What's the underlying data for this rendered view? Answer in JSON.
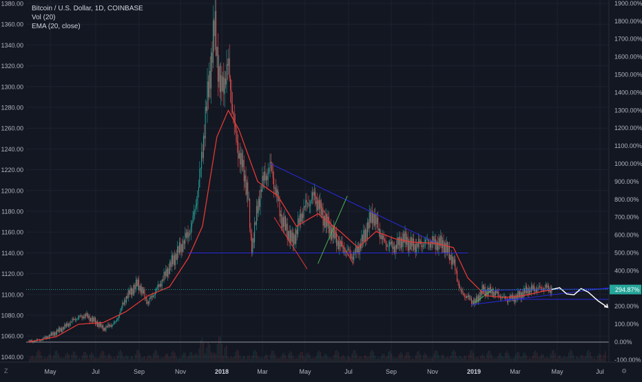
{
  "legend": {
    "symbol": "Bitcoin / U.S. Dollar, 1D, COINBASE",
    "vol": "Vol (20)",
    "ema": "EMA (20, close)"
  },
  "corner_left": "Z",
  "corner_right": "⚙",
  "colors": {
    "background": "#131722",
    "grid": "#1e2230",
    "candle_up": "#26a69a",
    "candle_down": "#ef5350",
    "ema": "#e53935",
    "trendline": "#2a2adf",
    "green_line": "#4caf50",
    "projection": "#ffffff",
    "price_line": "#26a69a",
    "badge": "#26a69a",
    "text": "#b2b5be"
  },
  "chart_data": {
    "type": "line",
    "subtype": "candlestick",
    "title": "Bitcoin / U.S. Dollar, 1D, COINBASE",
    "indicators": [
      "Vol (20)",
      "EMA (20, close)"
    ],
    "scale": "log (percent)",
    "grid": true,
    "x_ticks": [
      "May",
      "Jul",
      "Sep",
      "Nov",
      "2018",
      "Mar",
      "May",
      "Jul",
      "Sep",
      "Nov",
      "2019",
      "Mar",
      "May",
      "Jul"
    ],
    "y_left_ticks": [
      "1380.00",
      "1360.00",
      "1340.00",
      "1320.00",
      "1300.00",
      "1280.00",
      "1260.00",
      "1240.00",
      "1220.00",
      "1200.00",
      "1180.00",
      "1160.00",
      "1140.00",
      "1120.00",
      "1100.00",
      "1080.00",
      "1060.00",
      "1040.00"
    ],
    "y_right_ticks": [
      "1900.00%",
      "1800.00%",
      "1700.00%",
      "1600.00%",
      "1500.00%",
      "1400.00%",
      "1300.00%",
      "1200.00%",
      "1100.00%",
      "1000.00%",
      "900.00%",
      "800.00%",
      "700.00%",
      "600.00%",
      "500.00%",
      "400.00%",
      "300.00%",
      "200.00%",
      "100.00%",
      "0.00%",
      "-100.00%"
    ],
    "current_value_badge": "294.87%",
    "x_range": [
      "2017-04",
      "2019-07"
    ],
    "y_range_percent": [
      -100,
      1900
    ],
    "series": [
      {
        "name": "Price",
        "points": [
          [
            "2017-04-01",
            0
          ],
          [
            "2017-04-20",
            15
          ],
          [
            "2017-05-05",
            45
          ],
          [
            "2017-05-20",
            80
          ],
          [
            "2017-06-05",
            130
          ],
          [
            "2017-06-20",
            150
          ],
          [
            "2017-07-05",
            110
          ],
          [
            "2017-07-15",
            75
          ],
          [
            "2017-08-01",
            110
          ],
          [
            "2017-08-15",
            250
          ],
          [
            "2017-09-01",
            330
          ],
          [
            "2017-09-15",
            220
          ],
          [
            "2017-10-01",
            320
          ],
          [
            "2017-10-20",
            460
          ],
          [
            "2017-11-05",
            570
          ],
          [
            "2017-11-15",
            650
          ],
          [
            "2017-11-25",
            880
          ],
          [
            "2017-12-05",
            1300
          ],
          [
            "2017-12-17",
            1780
          ],
          [
            "2017-12-25",
            1400
          ],
          [
            "2018-01-05",
            1550
          ],
          [
            "2018-01-15",
            1150
          ],
          [
            "2018-02-01",
            850
          ],
          [
            "2018-02-06",
            520
          ],
          [
            "2018-02-20",
            880
          ],
          [
            "2018-03-05",
            990
          ],
          [
            "2018-03-20",
            690
          ],
          [
            "2018-04-05",
            560
          ],
          [
            "2018-04-20",
            750
          ],
          [
            "2018-05-05",
            820
          ],
          [
            "2018-05-20",
            680
          ],
          [
            "2018-06-10",
            540
          ],
          [
            "2018-06-28",
            480
          ],
          [
            "2018-07-10",
            560
          ],
          [
            "2018-07-25",
            720
          ],
          [
            "2018-08-10",
            560
          ],
          [
            "2018-08-25",
            530
          ],
          [
            "2018-09-05",
            580
          ],
          [
            "2018-09-20",
            540
          ],
          [
            "2018-10-10",
            560
          ],
          [
            "2018-11-01",
            550
          ],
          [
            "2018-11-15",
            450
          ],
          [
            "2018-11-25",
            280
          ],
          [
            "2018-12-15",
            220
          ],
          [
            "2018-12-25",
            290
          ],
          [
            "2019-01-10",
            280
          ],
          [
            "2019-01-28",
            240
          ],
          [
            "2019-02-10",
            250
          ],
          [
            "2019-02-25",
            290
          ],
          [
            "2019-03-10",
            300
          ],
          [
            "2019-03-25",
            305
          ],
          [
            "2019-04-01",
            295
          ]
        ]
      },
      {
        "name": "EMA (20, close)",
        "points": [
          [
            "2017-04-01",
            0
          ],
          [
            "2017-05-10",
            30
          ],
          [
            "2017-06-10",
            100
          ],
          [
            "2017-07-15",
            110
          ],
          [
            "2017-08-15",
            170
          ],
          [
            "2017-09-15",
            260
          ],
          [
            "2017-10-15",
            310
          ],
          [
            "2017-11-10",
            470
          ],
          [
            "2017-11-30",
            650
          ],
          [
            "2017-12-20",
            1150
          ],
          [
            "2018-01-05",
            1300
          ],
          [
            "2018-01-20",
            1190
          ],
          [
            "2018-02-15",
            900
          ],
          [
            "2018-03-15",
            820
          ],
          [
            "2018-04-10",
            650
          ],
          [
            "2018-05-10",
            720
          ],
          [
            "2018-06-10",
            620
          ],
          [
            "2018-07-05",
            530
          ],
          [
            "2018-07-30",
            620
          ],
          [
            "2018-08-25",
            580
          ],
          [
            "2018-09-20",
            560
          ],
          [
            "2018-10-20",
            555
          ],
          [
            "2018-11-15",
            530
          ],
          [
            "2018-12-05",
            360
          ],
          [
            "2018-12-30",
            260
          ],
          [
            "2019-01-25",
            250
          ],
          [
            "2019-02-20",
            260
          ],
          [
            "2019-03-20",
            285
          ],
          [
            "2019-04-01",
            292
          ]
        ]
      }
    ]
  }
}
